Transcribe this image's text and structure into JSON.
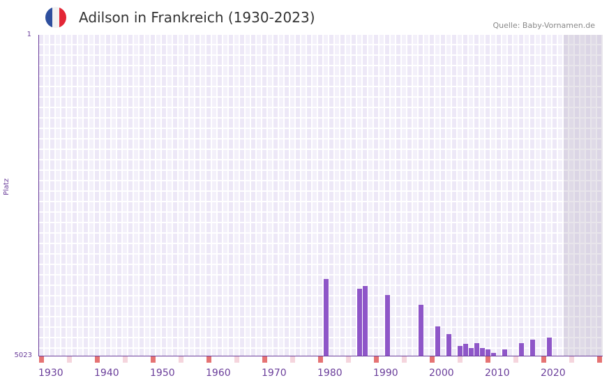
{
  "header": {
    "title": "Adilson in Frankreich (1930-2023)",
    "source": "Quelle: Baby-Vornamen.de",
    "flag_colors": [
      "#2e4f9e",
      "#f2f2f2",
      "#e32636"
    ]
  },
  "chart_data": {
    "type": "bar",
    "title": "Adilson in Frankreich (1930-2023)",
    "xlabel": "",
    "ylabel": "Platz",
    "ylim": [
      1,
      5023
    ],
    "y_inverted": true,
    "y_ticks": [
      "1",
      "5023"
    ],
    "x_range": [
      1930,
      2030
    ],
    "x_ticks": [
      "1930",
      "1940",
      "1950",
      "1960",
      "1970",
      "1980",
      "1990",
      "2000",
      "2010",
      "2020"
    ],
    "years": [
      1981,
      1987,
      1988,
      1992,
      1998,
      2001,
      2003,
      2005,
      2006,
      2007,
      2008,
      2009,
      2010,
      2011,
      2013,
      2016,
      2018,
      2021
    ],
    "values": [
      3822,
      3974,
      3931,
      4073,
      4226,
      4565,
      4685,
      4870,
      4838,
      4903,
      4826,
      4903,
      4925,
      4980,
      4925,
      4826,
      4771,
      4739
    ],
    "future_shaded_from": 2024,
    "colors": {
      "bar": "#8e56c8",
      "decade_marker": "#e57373",
      "half_decade_marker": "#f5d5dd"
    }
  }
}
